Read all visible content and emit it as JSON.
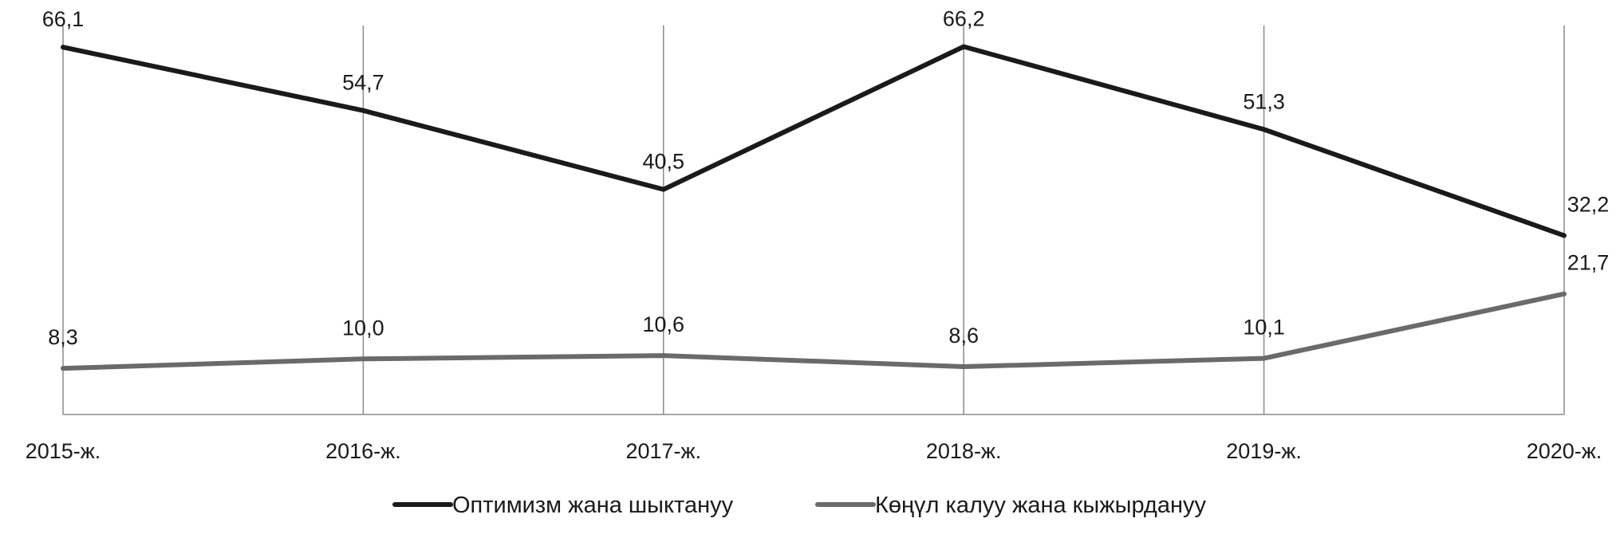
{
  "chart_data": {
    "type": "line",
    "categories": [
      "2015-ж.",
      "2016-ж.",
      "2017-ж.",
      "2018-ж.",
      "2019-ж.",
      "2020-ж."
    ],
    "series": [
      {
        "name": "Оптимизм жана шыктануу",
        "values": [
          66.1,
          54.7,
          40.5,
          66.2,
          51.3,
          32.2
        ],
        "labels": [
          "66,1",
          "54,7",
          "40,5",
          "66,2",
          "51,3",
          "32,2"
        ],
        "color": "#1a1a1a"
      },
      {
        "name": "Көңүл калуу жана кыжырдануу",
        "values": [
          8.3,
          10.0,
          10.6,
          8.6,
          10.1,
          21.7
        ],
        "labels": [
          "8,3",
          "10,0",
          "10,6",
          "8,6",
          "10,1",
          "21,7"
        ],
        "color": "#6a6a6a"
      }
    ],
    "ylim": [
      0,
      70
    ],
    "grid": "vertical",
    "legend": "bottom",
    "title": "",
    "xlabel": "",
    "ylabel": ""
  }
}
